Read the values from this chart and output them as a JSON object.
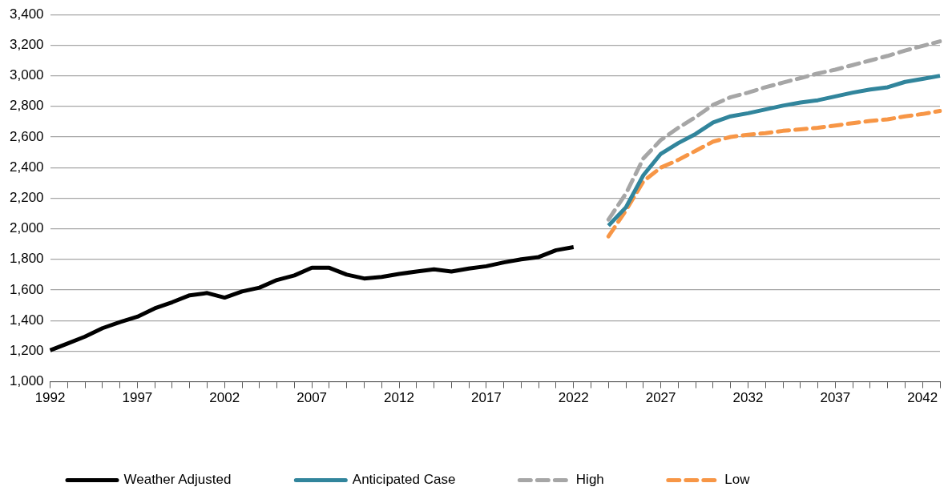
{
  "chart_data": {
    "type": "line",
    "categories": [
      "1992",
      null,
      null,
      null,
      null,
      "1997",
      null,
      null,
      null,
      null,
      "2002",
      null,
      null,
      null,
      null,
      "2007",
      null,
      null,
      null,
      null,
      "2012",
      null,
      null,
      null,
      null,
      "2017",
      null,
      null,
      null,
      null,
      "2022",
      null,
      null,
      null,
      null,
      "2027",
      null,
      null,
      null,
      null,
      "2032",
      null,
      null,
      null,
      null,
      "2037",
      null,
      null,
      null,
      null,
      "2042",
      null
    ],
    "series": [
      {
        "name": "Weather Adjusted",
        "color": "#000000",
        "line_style": "solid",
        "values": [
          1205,
          1250,
          1295,
          1350,
          1390,
          1425,
          1480,
          1520,
          1565,
          1580,
          1550,
          1590,
          1615,
          1665,
          1695,
          1745,
          1745,
          1700,
          1675,
          1685,
          1705,
          1720,
          1735,
          1720,
          1740,
          1755,
          1780,
          1800,
          1815,
          1860,
          1880,
          null,
          null,
          null,
          null,
          null,
          null,
          null,
          null,
          null,
          null,
          null,
          null,
          null,
          null,
          null,
          null,
          null,
          null,
          null,
          null,
          null
        ]
      },
      {
        "name": "Anticipated Case",
        "color": "#31859c",
        "line_style": "solid",
        "values": [
          null,
          null,
          null,
          null,
          null,
          null,
          null,
          null,
          null,
          null,
          null,
          null,
          null,
          null,
          null,
          null,
          null,
          null,
          null,
          null,
          null,
          null,
          null,
          null,
          null,
          null,
          null,
          null,
          null,
          null,
          null,
          null,
          2020,
          2140,
          2350,
          2490,
          2560,
          2620,
          2695,
          2735,
          2755,
          2780,
          2805,
          2825,
          2840,
          2865,
          2890,
          2910,
          2925,
          2960,
          2980,
          3000
        ]
      },
      {
        "name": "High",
        "color": "#a6a6a6",
        "line_style": "dashed",
        "values": [
          null,
          null,
          null,
          null,
          null,
          null,
          null,
          null,
          null,
          null,
          null,
          null,
          null,
          null,
          null,
          null,
          null,
          null,
          null,
          null,
          null,
          null,
          null,
          null,
          null,
          null,
          null,
          null,
          null,
          null,
          null,
          null,
          2060,
          2230,
          2460,
          2580,
          2660,
          2730,
          2810,
          2860,
          2890,
          2925,
          2955,
          2985,
          3015,
          3040,
          3070,
          3100,
          3130,
          3165,
          3195,
          3225
        ]
      },
      {
        "name": "Low",
        "color": "#f79646",
        "line_style": "dashed",
        "values": [
          null,
          null,
          null,
          null,
          null,
          null,
          null,
          null,
          null,
          null,
          null,
          null,
          null,
          null,
          null,
          null,
          null,
          null,
          null,
          null,
          null,
          null,
          null,
          null,
          null,
          null,
          null,
          null,
          null,
          null,
          null,
          null,
          1950,
          2120,
          2310,
          2400,
          2450,
          2510,
          2570,
          2600,
          2615,
          2625,
          2640,
          2650,
          2660,
          2675,
          2690,
          2705,
          2715,
          2735,
          2750,
          2770
        ]
      }
    ],
    "ylim": [
      1000,
      3400
    ],
    "yticks": [
      {
        "value": 1000,
        "label": "1,000"
      },
      {
        "value": 1200,
        "label": "1,200"
      },
      {
        "value": 1400,
        "label": "1,400"
      },
      {
        "value": 1600,
        "label": "1,600"
      },
      {
        "value": 1800,
        "label": "1,800"
      },
      {
        "value": 2000,
        "label": "2,000"
      },
      {
        "value": 2200,
        "label": "2,200"
      },
      {
        "value": 2400,
        "label": "2,400"
      },
      {
        "value": 2600,
        "label": "2,600"
      },
      {
        "value": 2800,
        "label": "2,800"
      },
      {
        "value": 3000,
        "label": "3,000"
      },
      {
        "value": 3200,
        "label": "3,200"
      },
      {
        "value": 3400,
        "label": "3,400"
      }
    ],
    "grid": "y",
    "legend": "bottom",
    "marker": "none"
  }
}
